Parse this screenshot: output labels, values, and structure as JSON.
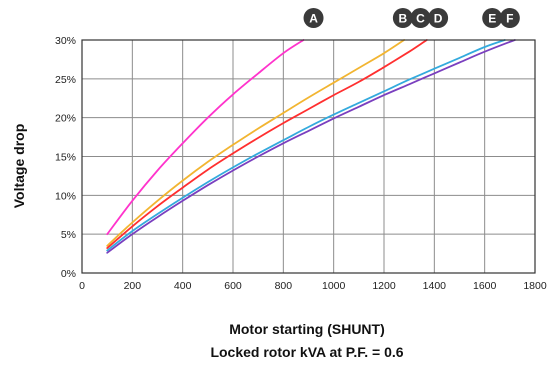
{
  "chart_data": {
    "type": "line",
    "xlabel": "Motor starting (SHUNT)",
    "xlabel2": "Locked rotor kVA at P.F. = 0.6",
    "ylabel": "Voltage drop",
    "xlim": [
      0,
      1800
    ],
    "ylim": [
      0,
      30
    ],
    "x_ticks": [
      "0",
      "200",
      "400",
      "600",
      "800",
      "1000",
      "1200",
      "1400",
      "1600",
      "1800"
    ],
    "y_ticks": [
      "0%",
      "5%",
      "10%",
      "15%",
      "20%",
      "25%",
      "30%"
    ],
    "grid": true,
    "series": [
      {
        "name": "A",
        "color": "#ff33cc",
        "x": [
          100,
          200,
          300,
          400,
          500,
          600,
          700,
          800,
          880
        ],
        "y": [
          5,
          9.3,
          13.2,
          16.7,
          20,
          23,
          25.7,
          28.3,
          30
        ]
      },
      {
        "name": "B",
        "color": "#f2b531",
        "x": [
          100,
          200,
          300,
          400,
          500,
          600,
          700,
          800,
          900,
          1000,
          1100,
          1200,
          1280
        ],
        "y": [
          3.5,
          6.5,
          9.3,
          11.9,
          14.3,
          16.5,
          18.6,
          20.6,
          22.6,
          24.5,
          26.4,
          28.3,
          30
        ]
      },
      {
        "name": "C",
        "color": "#ff2f2f",
        "x": [
          100,
          200,
          300,
          400,
          500,
          600,
          700,
          800,
          900,
          1000,
          1100,
          1200,
          1300,
          1370
        ],
        "y": [
          3.2,
          6.0,
          8.6,
          11.0,
          13.3,
          15.4,
          17.4,
          19.3,
          21.1,
          22.9,
          24.6,
          26.5,
          28.5,
          30
        ]
      },
      {
        "name": "E",
        "color": "#33aadd",
        "x": [
          100,
          200,
          300,
          400,
          500,
          600,
          700,
          800,
          900,
          1000,
          1100,
          1200,
          1300,
          1400,
          1500,
          1600,
          1680
        ],
        "y": [
          2.9,
          5.4,
          7.6,
          9.7,
          11.7,
          13.6,
          15.4,
          17.1,
          18.8,
          20.4,
          21.9,
          23.4,
          24.9,
          26.3,
          27.7,
          29.1,
          30
        ]
      },
      {
        "name": "F",
        "color": "#7a3fbf",
        "x": [
          100,
          200,
          300,
          400,
          500,
          600,
          700,
          800,
          900,
          1000,
          1100,
          1200,
          1300,
          1400,
          1500,
          1600,
          1720
        ],
        "y": [
          2.6,
          5.0,
          7.2,
          9.3,
          11.3,
          13.2,
          15.0,
          16.7,
          18.3,
          19.9,
          21.4,
          22.9,
          24.3,
          25.7,
          27.1,
          28.5,
          30
        ]
      }
    ],
    "badges": [
      {
        "label": "A",
        "x": 920
      },
      {
        "label": "B",
        "x": 1275
      },
      {
        "label": "C",
        "x": 1345
      },
      {
        "label": "D",
        "x": 1415
      },
      {
        "label": "E",
        "x": 1630
      },
      {
        "label": "F",
        "x": 1700
      }
    ],
    "badge_color": "#3a3a3a"
  }
}
